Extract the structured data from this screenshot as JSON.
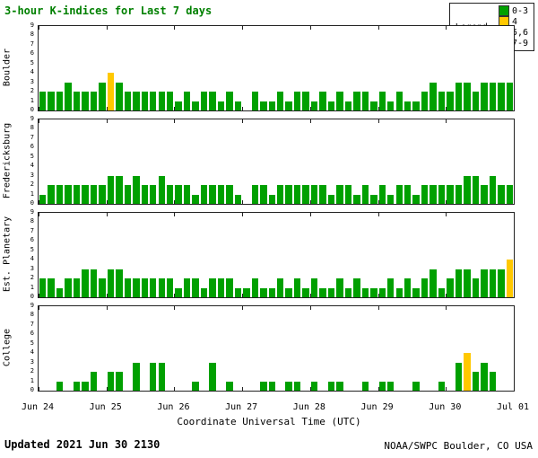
{
  "title": "3-hour K-indices for Last 7 days",
  "legend": {
    "label": "Legend:",
    "items": [
      {
        "label": "0-3",
        "color": "#00a000"
      },
      {
        "label": "4",
        "color": "#ffc800"
      },
      {
        "label": "5,6",
        "color": "#ff0000"
      },
      {
        "label": "7-9",
        "color": "#500a78"
      }
    ]
  },
  "footer": {
    "updated_label": "Updated",
    "updated_value": "2021 Jun 30 2130",
    "credit": "NOAA/SWPC Boulder, CO USA"
  },
  "chart_data": {
    "type": "bar",
    "title": "3-hour K-indices for Last 7 days",
    "xlabel": "Coordinate Universal Time (UTC)",
    "x_tick_labels": [
      "Jun 24",
      "Jun 25",
      "Jun 26",
      "Jun 27",
      "Jun 28",
      "Jun 29",
      "Jun 30",
      "Jul 01"
    ],
    "y_tick_labels": [
      "0",
      "1",
      "2",
      "3",
      "4",
      "5",
      "6",
      "7",
      "8",
      "9"
    ],
    "ylim": [
      0,
      9
    ],
    "bars_per_day": 8,
    "days": 7,
    "grid": false,
    "legend_position": "top-right",
    "palette": {
      "0-3": "#00a000",
      "4": "#ffc800",
      "5,6": "#ff0000",
      "7-9": "#500a78"
    },
    "series": [
      {
        "name": "Boulder",
        "values": [
          2,
          2,
          2,
          3,
          2,
          2,
          2,
          3,
          4,
          3,
          2,
          2,
          2,
          2,
          2,
          2,
          1,
          2,
          1,
          2,
          2,
          1,
          2,
          1,
          0,
          2,
          1,
          1,
          2,
          1,
          2,
          2,
          1,
          2,
          1,
          2,
          1,
          2,
          2,
          1,
          2,
          1,
          2,
          1,
          1,
          2,
          3,
          2,
          2,
          3,
          3,
          2,
          3,
          3,
          3,
          3
        ]
      },
      {
        "name": "Fredericksburg",
        "values": [
          1,
          2,
          2,
          2,
          2,
          2,
          2,
          2,
          3,
          3,
          2,
          3,
          2,
          2,
          3,
          2,
          2,
          2,
          1,
          2,
          2,
          2,
          2,
          1,
          0,
          2,
          2,
          1,
          2,
          2,
          2,
          2,
          2,
          2,
          1,
          2,
          2,
          1,
          2,
          1,
          2,
          1,
          2,
          2,
          1,
          2,
          2,
          2,
          2,
          2,
          3,
          3,
          2,
          3,
          2,
          2
        ]
      },
      {
        "name": "Est. Planetary",
        "values": [
          2,
          2,
          1,
          2,
          2,
          3,
          3,
          2,
          3,
          3,
          2,
          2,
          2,
          2,
          2,
          2,
          1,
          2,
          2,
          1,
          2,
          2,
          2,
          1,
          1,
          2,
          1,
          1,
          2,
          1,
          2,
          1,
          2,
          1,
          1,
          2,
          1,
          2,
          1,
          1,
          1,
          2,
          1,
          2,
          1,
          2,
          3,
          1,
          2,
          3,
          3,
          2,
          3,
          3,
          3,
          4
        ]
      },
      {
        "name": "College",
        "values": [
          0,
          0,
          1,
          0,
          1,
          1,
          2,
          0,
          2,
          2,
          0,
          3,
          0,
          3,
          3,
          0,
          0,
          0,
          1,
          0,
          3,
          0,
          1,
          0,
          0,
          0,
          1,
          1,
          0,
          1,
          1,
          0,
          1,
          0,
          1,
          1,
          0,
          0,
          1,
          0,
          1,
          1,
          0,
          0,
          1,
          0,
          0,
          1,
          0,
          3,
          4,
          2,
          3,
          2,
          0,
          0
        ]
      }
    ]
  }
}
